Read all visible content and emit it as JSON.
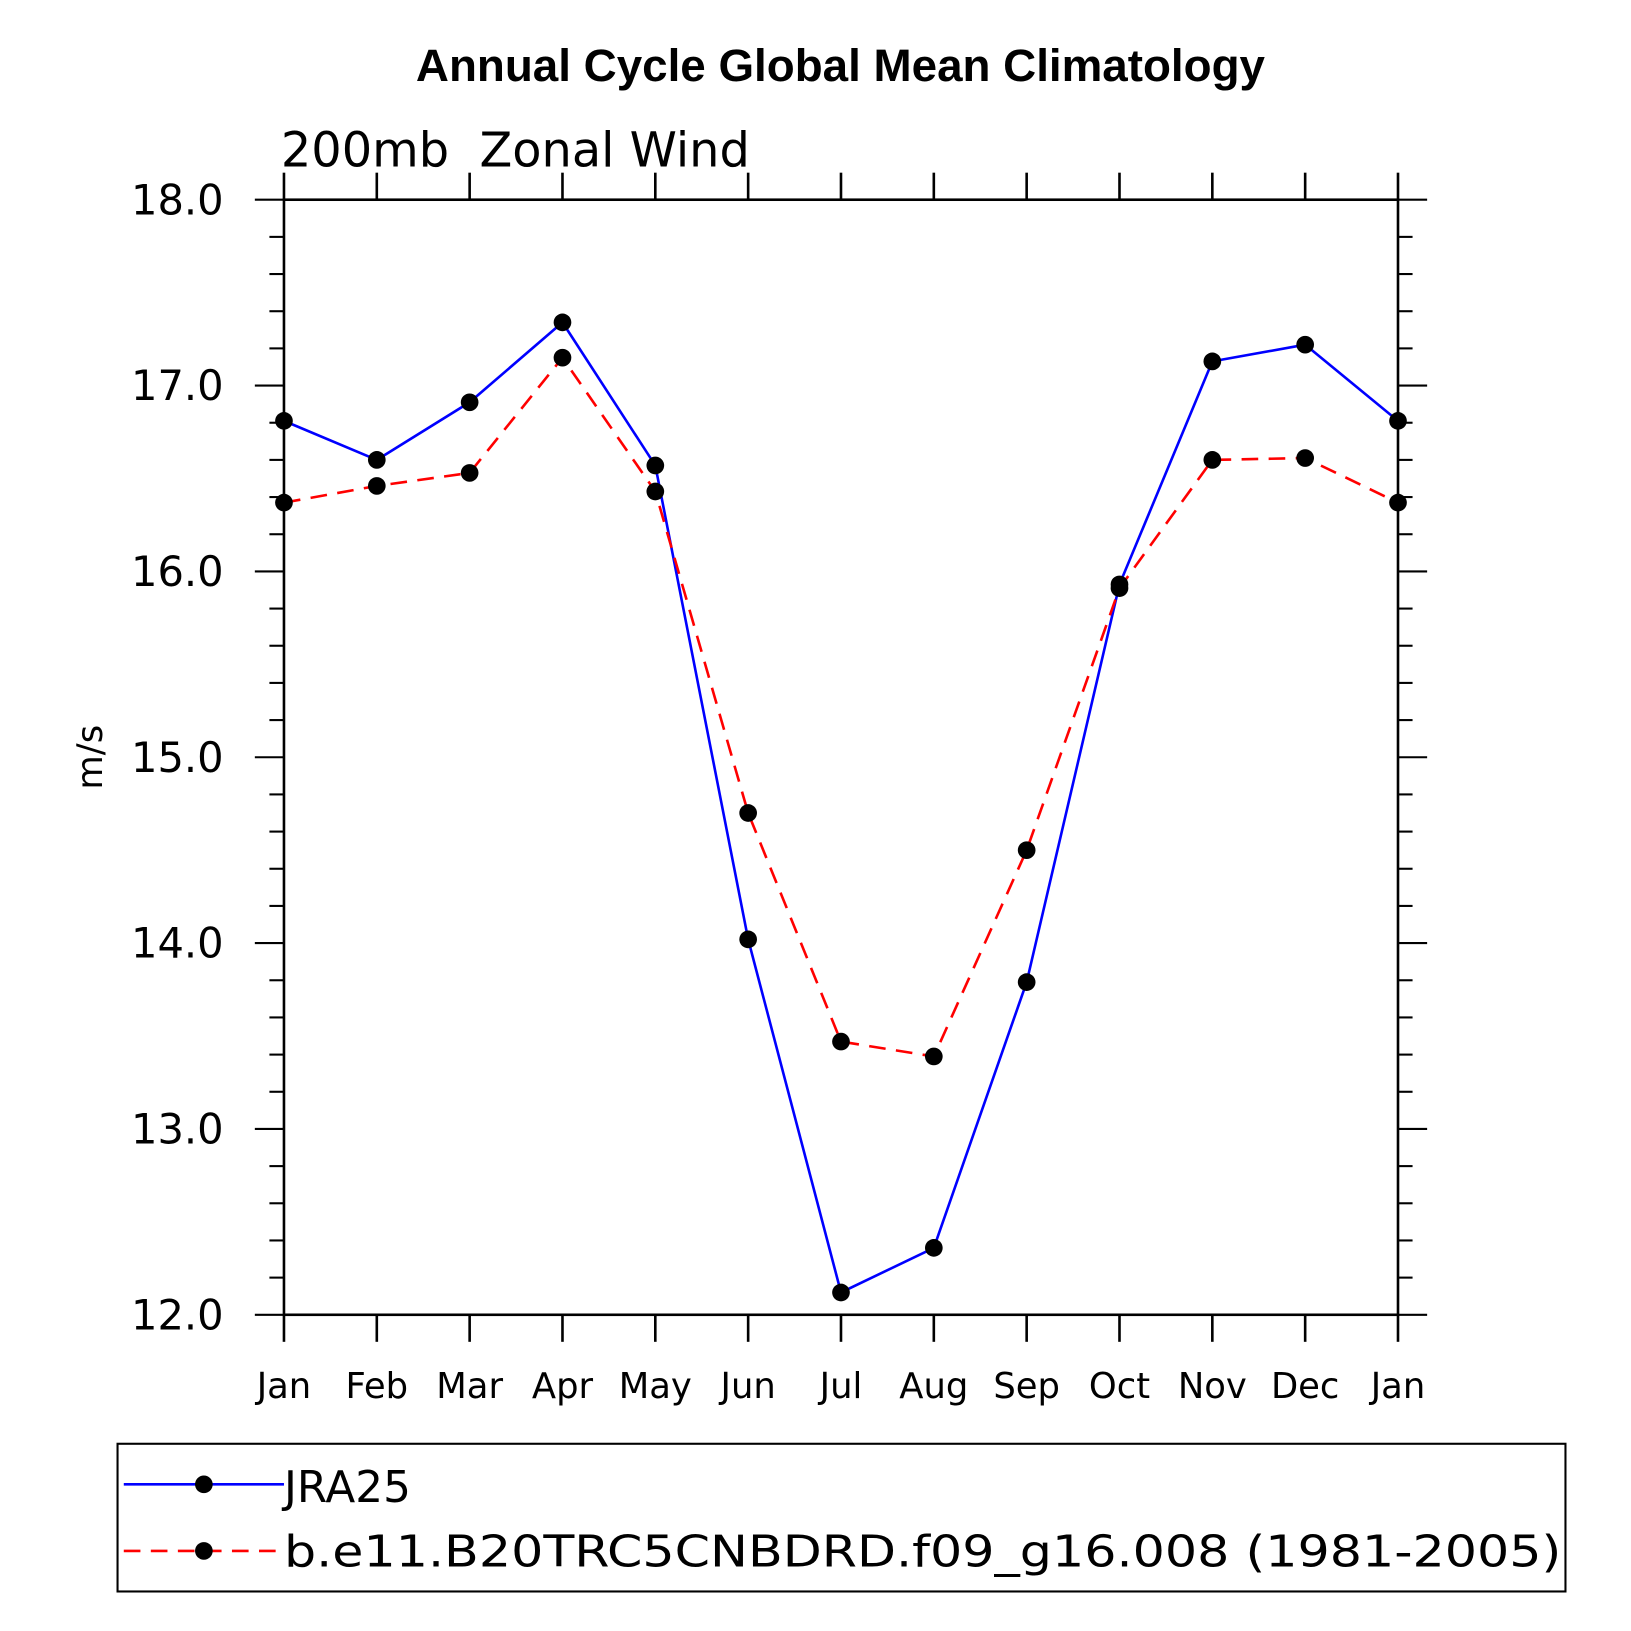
{
  "chart_data": {
    "type": "line",
    "title": "Annual Cycle Global Mean Climatology",
    "subtitle": "200mb  Zonal Wind",
    "xlabel": "",
    "ylabel": "m/s",
    "categories": [
      "Jan",
      "Feb",
      "Mar",
      "Apr",
      "May",
      "Jun",
      "Jul",
      "Aug",
      "Sep",
      "Oct",
      "Nov",
      "Dec",
      "Jan"
    ],
    "ylim": [
      12.0,
      18.0
    ],
    "yticks": [
      "12.0",
      "13.0",
      "14.0",
      "15.0",
      "16.0",
      "17.0",
      "18.0"
    ],
    "grid": false,
    "legend_position": "bottom",
    "series": [
      {
        "name": "JRA25",
        "color": "#0000ff",
        "dash": "solid",
        "values": [
          16.81,
          16.6,
          16.91,
          17.34,
          16.57,
          14.02,
          12.12,
          12.36,
          13.79,
          15.93,
          17.13,
          17.22,
          16.81
        ]
      },
      {
        "name": "b.e11.B20TRC5CNBDRD.f09_g16.008 (1981-2005)",
        "color": "#ff0000",
        "dash": "dashed",
        "values": [
          16.37,
          16.46,
          16.53,
          17.15,
          16.43,
          14.7,
          13.47,
          13.39,
          14.5,
          15.91,
          16.6,
          16.61,
          16.37
        ]
      }
    ]
  }
}
